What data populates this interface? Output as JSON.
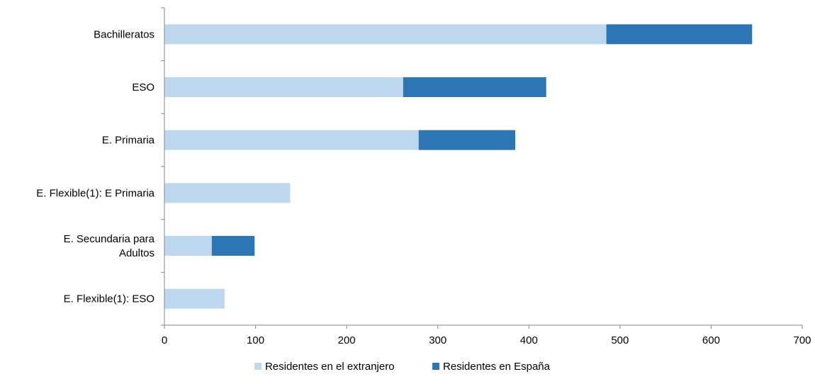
{
  "chart_data": {
    "type": "bar",
    "orientation": "horizontal",
    "stacked": true,
    "categories": [
      [
        "Bachilleratos"
      ],
      [
        "ESO"
      ],
      [
        "E. Primaria"
      ],
      [
        "E. Flexible(1): E Primaria"
      ],
      [
        "E. Secundaria para",
        "Adultos"
      ],
      [
        "E. Flexible(1): ESO"
      ]
    ],
    "series": [
      {
        "name": "Residentes en el extranjero",
        "color": "#bdd7ee",
        "values": [
          485,
          262,
          279,
          138,
          52,
          66
        ]
      },
      {
        "name": "Residentes en España",
        "color": "#2e75b6",
        "values": [
          160,
          157,
          106,
          0,
          47,
          0
        ]
      }
    ],
    "xlim": [
      0,
      700
    ],
    "xticks": [
      0,
      100,
      200,
      300,
      400,
      500,
      600,
      700
    ],
    "xtick_labels": [
      "0",
      "100",
      "200",
      "300",
      "400",
      "500",
      "600",
      "700"
    ],
    "grid": false,
    "legend_position": "bottom"
  }
}
